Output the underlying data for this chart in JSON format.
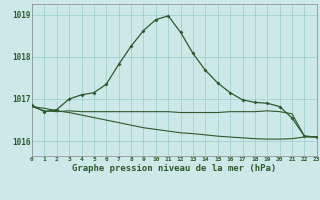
{
  "background_color": "#cce8e8",
  "grid_color": "#99cccc",
  "line_color": "#2d5a2d",
  "xlabel": "Graphe pression niveau de la mer (hPa)",
  "ylabel_ticks": [
    1016,
    1017,
    1018,
    1019
  ],
  "xlim": [
    0,
    23
  ],
  "ylim": [
    1015.65,
    1019.25
  ],
  "figsize": [
    3.2,
    2.0
  ],
  "dpi": 100,
  "series1_x": [
    0,
    1,
    2,
    3,
    4,
    5,
    6,
    7,
    8,
    9,
    10,
    11,
    12,
    13,
    14,
    15,
    16,
    17,
    18,
    19,
    20,
    21,
    22,
    23
  ],
  "series1_y": [
    1016.85,
    1016.7,
    1016.75,
    1017.0,
    1017.1,
    1017.15,
    1017.35,
    1017.82,
    1018.25,
    1018.62,
    1018.88,
    1018.97,
    1018.58,
    1018.08,
    1017.68,
    1017.38,
    1017.15,
    1016.98,
    1016.92,
    1016.9,
    1016.82,
    1016.55,
    1016.12,
    1016.1
  ],
  "series2_x": [
    0,
    1,
    2,
    3,
    4,
    5,
    6,
    7,
    8,
    9,
    10,
    11,
    12,
    13,
    14,
    15,
    16,
    17,
    18,
    19,
    20,
    21,
    22,
    23
  ],
  "series2_y": [
    1016.82,
    1016.72,
    1016.7,
    1016.72,
    1016.7,
    1016.7,
    1016.7,
    1016.7,
    1016.7,
    1016.7,
    1016.7,
    1016.7,
    1016.68,
    1016.68,
    1016.68,
    1016.68,
    1016.7,
    1016.7,
    1016.7,
    1016.72,
    1016.7,
    1016.65,
    1016.12,
    1016.1
  ],
  "series3_x": [
    0,
    1,
    2,
    3,
    4,
    5,
    6,
    7,
    8,
    9,
    10,
    11,
    12,
    13,
    14,
    15,
    16,
    17,
    18,
    19,
    20,
    21,
    22,
    23
  ],
  "series3_y": [
    1016.82,
    1016.78,
    1016.72,
    1016.68,
    1016.62,
    1016.56,
    1016.5,
    1016.44,
    1016.38,
    1016.32,
    1016.28,
    1016.24,
    1016.2,
    1016.18,
    1016.15,
    1016.12,
    1016.1,
    1016.08,
    1016.06,
    1016.05,
    1016.05,
    1016.06,
    1016.1,
    1016.1
  ]
}
